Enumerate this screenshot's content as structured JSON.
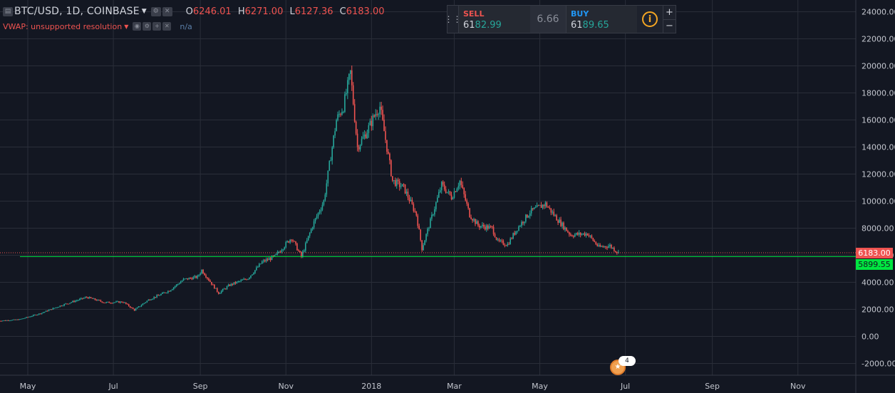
{
  "legend": {
    "symbol": "BTC/USD, 1D, COINBASE",
    "open_key": "O",
    "open": "6246.01",
    "high_key": "H",
    "high": "6271.00",
    "low_key": "L",
    "low": "6127.36",
    "close_key": "C",
    "close": "6183.00"
  },
  "indicator": {
    "name": "VWAP: unsupported resolution",
    "value": "n/a"
  },
  "trade_panel": {
    "sell_label": "SELL",
    "sell_main": "61",
    "sell_big": "82.99",
    "spread": "6.66",
    "buy_label": "BUY",
    "buy_main": "61",
    "buy_big": "89.65"
  },
  "price_tags": {
    "last": "6183.00",
    "line": "5899.55"
  },
  "event_count": "4",
  "colors": {
    "background": "#131722",
    "grid": "#2a2e39",
    "up": "#26a69a",
    "down": "#ef5350",
    "last_price": "#ef5350",
    "horizontal_line": "#00e640"
  },
  "chart_data": {
    "type": "candlestick",
    "title": "BTC/USD, 1D, COINBASE",
    "y_axis": {
      "position": "right",
      "ticks": [
        -2000,
        0,
        2000,
        4000,
        6000,
        8000,
        10000,
        12000,
        14000,
        16000,
        18000,
        20000,
        22000,
        24000
      ],
      "tick_labels": [
        "-2000.00",
        "0.00",
        "2000.00",
        "4000.00",
        "6000.00",
        "8000.00",
        "10000.00",
        "12000.00",
        "14000.00",
        "16000.00",
        "18000.00",
        "20000.00",
        "22000.00",
        "24000.00"
      ]
    },
    "x_axis": {
      "tick_labels": [
        "May",
        "Jul",
        "Sep",
        "Nov",
        "2018",
        "Mar",
        "May",
        "Jul",
        "Sep",
        "Nov"
      ],
      "tick_dates": [
        "2017-05-01",
        "2017-07-01",
        "2017-09-01",
        "2017-11-01",
        "2018-01-01",
        "2018-03-01",
        "2018-05-01",
        "2018-07-01",
        "2018-09-01",
        "2018-11-01"
      ]
    },
    "horizontal_line": 5899.55,
    "last_price": 6183.0,
    "close_path": [
      [
        "2017-04-10",
        1150
      ],
      [
        "2017-04-25",
        1250
      ],
      [
        "2017-05-10",
        1700
      ],
      [
        "2017-05-25",
        2300
      ],
      [
        "2017-06-12",
        2900
      ],
      [
        "2017-06-25",
        2500
      ],
      [
        "2017-07-08",
        2550
      ],
      [
        "2017-07-16",
        1950
      ],
      [
        "2017-07-26",
        2700
      ],
      [
        "2017-08-10",
        3400
      ],
      [
        "2017-08-20",
        4200
      ],
      [
        "2017-08-30",
        4400
      ],
      [
        "2017-09-02",
        4900
      ],
      [
        "2017-09-14",
        3200
      ],
      [
        "2017-09-22",
        3800
      ],
      [
        "2017-10-05",
        4300
      ],
      [
        "2017-10-15",
        5500
      ],
      [
        "2017-10-24",
        5900
      ],
      [
        "2017-11-05",
        7300
      ],
      [
        "2017-11-12",
        5900
      ],
      [
        "2017-11-20",
        8200
      ],
      [
        "2017-11-28",
        10000
      ],
      [
        "2017-12-07",
        16000
      ],
      [
        "2017-12-12",
        17000
      ],
      [
        "2017-12-17",
        19500
      ],
      [
        "2017-12-22",
        14000
      ],
      [
        "2017-12-28",
        15000
      ],
      [
        "2018-01-04",
        16500
      ],
      [
        "2018-01-07",
        17000
      ],
      [
        "2018-01-16",
        11500
      ],
      [
        "2018-01-24",
        11000
      ],
      [
        "2018-02-02",
        9000
      ],
      [
        "2018-02-06",
        6500
      ],
      [
        "2018-02-12",
        8500
      ],
      [
        "2018-02-20",
        11200
      ],
      [
        "2018-02-27",
        10300
      ],
      [
        "2018-03-05",
        11500
      ],
      [
        "2018-03-12",
        9000
      ],
      [
        "2018-03-18",
        8200
      ],
      [
        "2018-03-28",
        8000
      ],
      [
        "2018-04-01",
        7000
      ],
      [
        "2018-04-08",
        6800
      ],
      [
        "2018-04-15",
        8000
      ],
      [
        "2018-04-24",
        9200
      ],
      [
        "2018-05-05",
        9800
      ],
      [
        "2018-05-14",
        8600
      ],
      [
        "2018-05-23",
        7500
      ],
      [
        "2018-06-04",
        7600
      ],
      [
        "2018-06-12",
        6600
      ],
      [
        "2018-06-20",
        6700
      ],
      [
        "2018-06-26",
        6183
      ]
    ]
  }
}
